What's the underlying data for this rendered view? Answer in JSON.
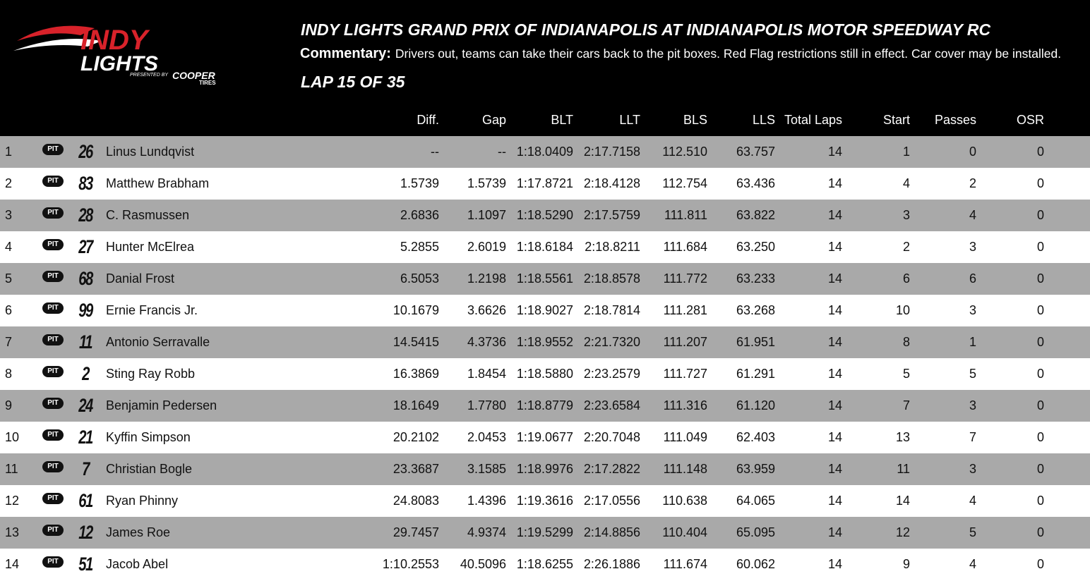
{
  "logo": {
    "top": "INDY",
    "main": "LIGHTS",
    "presented": "PRESENTED BY",
    "brand": "COOPER",
    "brand_sub": "TIRES"
  },
  "header": {
    "title": "INDY LIGHTS GRAND PRIX OF INDIANAPOLIS AT INDIANAPOLIS MOTOR SPEEDWAY RC",
    "commentary_label": "Commentary:",
    "commentary": "Drivers out, teams can take their cars back to the pit boxes. Red Flag restrictions still in effect. Car cover may be installed.",
    "lap": "LAP 15 OF 35"
  },
  "table": {
    "columns": [
      "Diff.",
      "Gap",
      "BLT",
      "LLT",
      "BLS",
      "LLS",
      "Total Laps",
      "Start",
      "Passes",
      "OSR"
    ],
    "rows": [
      [
        "1",
        "PIT",
        "26",
        "Linus Lundqvist",
        "--",
        "--",
        "1:18.0409",
        "2:17.7158",
        "112.510",
        "63.757",
        "14",
        "1",
        "0",
        "0"
      ],
      [
        "2",
        "PIT",
        "83",
        "Matthew Brabham",
        "1.5739",
        "1.5739",
        "1:17.8721",
        "2:18.4128",
        "112.754",
        "63.436",
        "14",
        "4",
        "2",
        "0"
      ],
      [
        "3",
        "PIT",
        "28",
        "C. Rasmussen",
        "2.6836",
        "1.1097",
        "1:18.5290",
        "2:17.5759",
        "111.811",
        "63.822",
        "14",
        "3",
        "4",
        "0"
      ],
      [
        "4",
        "PIT",
        "27",
        "Hunter McElrea",
        "5.2855",
        "2.6019",
        "1:18.6184",
        "2:18.8211",
        "111.684",
        "63.250",
        "14",
        "2",
        "3",
        "0"
      ],
      [
        "5",
        "PIT",
        "68",
        "Danial Frost",
        "6.5053",
        "1.2198",
        "1:18.5561",
        "2:18.8578",
        "111.772",
        "63.233",
        "14",
        "6",
        "6",
        "0"
      ],
      [
        "6",
        "PIT",
        "99",
        "Ernie Francis Jr.",
        "10.1679",
        "3.6626",
        "1:18.9027",
        "2:18.7814",
        "111.281",
        "63.268",
        "14",
        "10",
        "3",
        "0"
      ],
      [
        "7",
        "PIT",
        "11",
        "Antonio Serravalle",
        "14.5415",
        "4.3736",
        "1:18.9552",
        "2:21.7320",
        "111.207",
        "61.951",
        "14",
        "8",
        "1",
        "0"
      ],
      [
        "8",
        "PIT",
        "2",
        "Sting Ray Robb",
        "16.3869",
        "1.8454",
        "1:18.5880",
        "2:23.2579",
        "111.727",
        "61.291",
        "14",
        "5",
        "5",
        "0"
      ],
      [
        "9",
        "PIT",
        "24",
        "Benjamin Pedersen",
        "18.1649",
        "1.7780",
        "1:18.8779",
        "2:23.6584",
        "111.316",
        "61.120",
        "14",
        "7",
        "3",
        "0"
      ],
      [
        "10",
        "PIT",
        "21",
        "Kyffin Simpson",
        "20.2102",
        "2.0453",
        "1:19.0677",
        "2:20.7048",
        "111.049",
        "62.403",
        "14",
        "13",
        "7",
        "0"
      ],
      [
        "11",
        "PIT",
        "7",
        "Christian Bogle",
        "23.3687",
        "3.1585",
        "1:18.9976",
        "2:17.2822",
        "111.148",
        "63.959",
        "14",
        "11",
        "3",
        "0"
      ],
      [
        "12",
        "PIT",
        "61",
        "Ryan Phinny",
        "24.8083",
        "1.4396",
        "1:19.3616",
        "2:17.0556",
        "110.638",
        "64.065",
        "14",
        "14",
        "4",
        "0"
      ],
      [
        "13",
        "PIT",
        "12",
        "James Roe",
        "29.7457",
        "4.9374",
        "1:19.5299",
        "2:14.8856",
        "110.404",
        "65.095",
        "14",
        "12",
        "5",
        "0"
      ],
      [
        "14",
        "PIT",
        "51",
        "Jacob Abel",
        "1:10.2553",
        "40.5096",
        "1:18.6255",
        "2:26.1886",
        "111.674",
        "60.062",
        "14",
        "9",
        "4",
        "0"
      ]
    ]
  }
}
